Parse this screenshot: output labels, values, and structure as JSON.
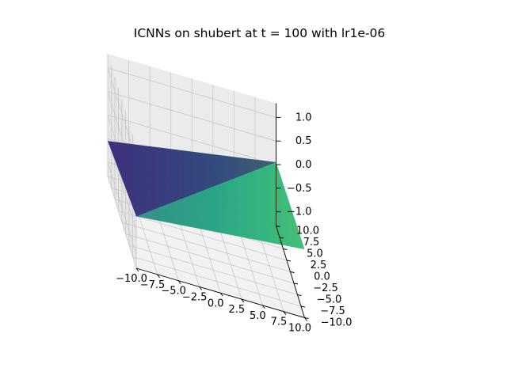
{
  "chart_data": {
    "type": "surface3d",
    "title": "ICNNs on shubert at t = 100 with lr1e-06",
    "xlabel": "",
    "ylabel": "",
    "zlabel": "",
    "x_ticks": [
      -10.0,
      -7.5,
      -5.0,
      -2.5,
      0.0,
      2.5,
      5.0,
      7.5,
      10.0
    ],
    "y_ticks": [
      -10.0,
      -7.5,
      -5.0,
      -2.5,
      0.0,
      2.5,
      5.0,
      7.5,
      10.0
    ],
    "z_ticks": [
      -1.0,
      -0.5,
      0.0,
      0.5,
      1.0
    ],
    "x_tick_labels": [
      "−10.0",
      "−7.5",
      "−5.0",
      "−2.5",
      "0.0",
      "2.5",
      "5.0",
      "7.5",
      "10.0"
    ],
    "y_tick_labels": [
      "−10.0",
      "−7.5",
      "−5.0",
      "−2.5",
      "0.0",
      "2.5",
      "5.0",
      "7.5",
      "10.0"
    ],
    "z_tick_labels": [
      "−1.0",
      "−0.5",
      "0.0",
      "0.5",
      "1.0"
    ],
    "xlim": [
      -10,
      10
    ],
    "ylim": [
      -10,
      10
    ],
    "zlim": [
      -1.3,
      1.3
    ],
    "colormap": "viridis",
    "grid": true,
    "surface": {
      "x": [
        -10,
        10
      ],
      "y": [
        -10,
        10
      ],
      "z": [
        [
          -0.2,
          0.15
        ],
        [
          -0.55,
          0.05
        ]
      ]
    }
  }
}
